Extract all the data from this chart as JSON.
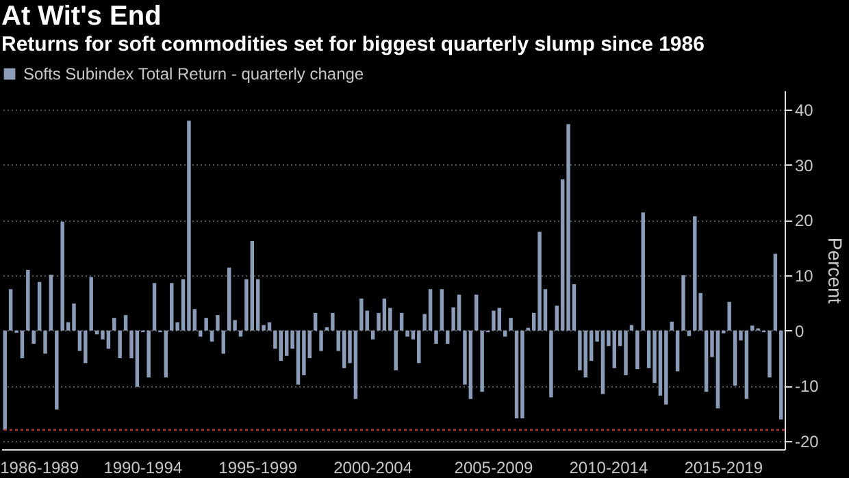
{
  "chart_data": {
    "type": "bar",
    "title": "At Wit's End",
    "subtitle": "Returns for soft commodities set for biggest quarterly slump since 1986",
    "ylabel": "Percent",
    "categories": [
      null,
      null,
      null,
      null,
      null,
      null,
      "1986-1989",
      null,
      null,
      null,
      null,
      null,
      null,
      null,
      null,
      null,
      null,
      null,
      null,
      null,
      null,
      null,
      null,
      null,
      "1990-1994",
      null,
      null,
      null,
      null,
      null,
      null,
      null,
      null,
      null,
      null,
      null,
      null,
      null,
      null,
      null,
      null,
      null,
      null,
      null,
      "1995-1999",
      null,
      null,
      null,
      null,
      null,
      null,
      null,
      null,
      null,
      null,
      null,
      null,
      null,
      null,
      null,
      null,
      null,
      null,
      null,
      "2000-2004",
      null,
      null,
      null,
      null,
      null,
      null,
      null,
      null,
      null,
      null,
      null,
      null,
      null,
      null,
      null,
      null,
      null,
      null,
      null,
      null,
      "2005-2009",
      null,
      null,
      null,
      null,
      null,
      null,
      null,
      null,
      null,
      null,
      null,
      null,
      null,
      null,
      null,
      null,
      null,
      null,
      null,
      "2010-2014",
      null,
      null,
      null,
      null,
      null,
      null,
      null,
      null,
      null,
      null,
      null,
      null,
      null,
      null,
      null,
      null,
      null,
      null,
      null,
      "2015-2019",
      null,
      null,
      null,
      null,
      null,
      null,
      null,
      null,
      null,
      null
    ],
    "series": [
      {
        "name": "Softs Subindex Total Return - quarterly change",
        "color": "#8a9cb8",
        "values": [
          -18,
          7.5,
          -0.4,
          -5,
          11,
          -2.4,
          8.8,
          -4.2,
          10.1,
          -14.3,
          19.7,
          1.5,
          4.9,
          -3.7,
          -5.9,
          9.7,
          -0.7,
          -1.6,
          -3.3,
          2.3,
          -5,
          2.8,
          -5,
          -10.2,
          -0.3,
          -8.5,
          8.6,
          -0.3,
          -8.5,
          8.6,
          1.5,
          9.3,
          38,
          3.9,
          -1.1,
          2.3,
          -2,
          2.8,
          -4.2,
          11.4,
          1.9,
          -1.1,
          9.3,
          16.2,
          9.3,
          1,
          1.5,
          -3.3,
          -5.5,
          -4.6,
          -3.3,
          -9.8,
          -8.1,
          -5,
          3.2,
          -3.7,
          0.6,
          3.2,
          -3.7,
          -6.8,
          -5.9,
          -12.4,
          5.8,
          3.6,
          -1.6,
          3.2,
          5.8,
          4.1,
          -7.2,
          3.2,
          -1.1,
          -1.6,
          -5.9,
          3,
          7.5,
          -2.4,
          7.5,
          -2.4,
          4.2,
          6.5,
          -9.8,
          -12.4,
          6.5,
          -11.1,
          -0.3,
          3.6,
          4.1,
          -1.1,
          2.3,
          -15.9,
          -15.9,
          0.5,
          3.2,
          17.9,
          7.5,
          -12.1,
          4.5,
          27.4,
          37.4,
          8.4,
          -7.2,
          -8.5,
          -5.5,
          -2,
          -11.5,
          -2.8,
          -6.8,
          -2.8,
          -8.1,
          1,
          -7,
          21.4,
          -6.8,
          -9.5,
          -11.8,
          -13.4,
          1.6,
          -7.4,
          10,
          -1,
          20.7,
          6.8,
          -11.1,
          -4.8,
          -14.1,
          -0.5,
          5.2,
          -10,
          -1.8,
          -12.4,
          0.9,
          0.4,
          -0.3,
          -8.5,
          13.9,
          -16.1
        ]
      }
    ],
    "ylim": [
      -21.5,
      43.5
    ],
    "yticks": [
      -20,
      -10,
      0,
      10,
      20,
      30,
      40
    ],
    "ref_lines": [
      {
        "axis": "y",
        "value": -18,
        "color": "#a83232",
        "line_style": "dotted"
      }
    ],
    "grid": "y",
    "legend": "top left"
  }
}
